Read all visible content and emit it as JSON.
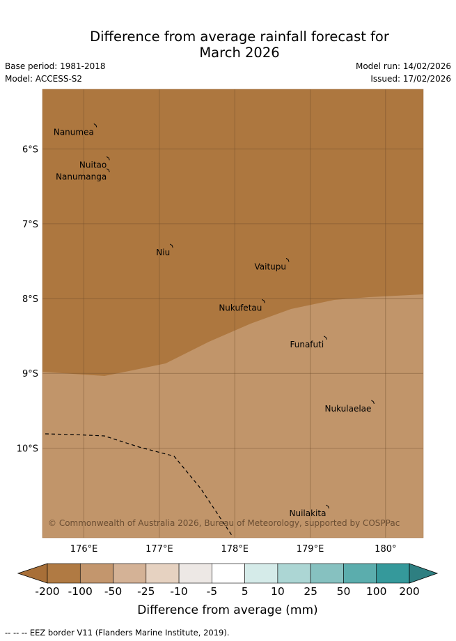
{
  "title": {
    "line1": "Difference from average rainfall forecast for",
    "line2": "March 2026"
  },
  "meta": {
    "base_period": "Base period: 1981-2018",
    "model": "Model: ACCESS-S2",
    "model_run": "Model run: 14/02/2026",
    "issued": "Issued: 17/02/2026"
  },
  "map": {
    "lon_range": [
      175.45,
      180.5
    ],
    "lat_range": [
      -11.2,
      -5.2
    ],
    "lon_ticks": [
      {
        "value": 176,
        "label": "176°E"
      },
      {
        "value": 177,
        "label": "177°E"
      },
      {
        "value": 178,
        "label": "178°E"
      },
      {
        "value": 179,
        "label": "179°E"
      },
      {
        "value": 180,
        "label": "180°"
      }
    ],
    "lat_ticks": [
      {
        "value": -6,
        "label": "6°S"
      },
      {
        "value": -7,
        "label": "7°S"
      },
      {
        "value": -8,
        "label": "8°S"
      },
      {
        "value": -9,
        "label": "9°S"
      },
      {
        "value": -10,
        "label": "10°S"
      }
    ],
    "colors": {
      "dark_zone": "#ad773f",
      "light_zone": "#c1956a",
      "grid": "#6b4a2a"
    },
    "islands": [
      {
        "name": "Nanumea",
        "lon": 176.15,
        "lat": -5.68
      },
      {
        "name": "Nuitao",
        "lon": 176.32,
        "lat": -6.12
      },
      {
        "name": "Nanumanga",
        "lon": 176.32,
        "lat": -6.28
      },
      {
        "name": "Niu",
        "lon": 177.16,
        "lat": -7.29
      },
      {
        "name": "Vaitupu",
        "lon": 178.7,
        "lat": -7.48
      },
      {
        "name": "Nukufetau",
        "lon": 178.38,
        "lat": -8.03
      },
      {
        "name": "Funafuti",
        "lon": 179.2,
        "lat": -8.52
      },
      {
        "name": "Nukulaelae",
        "lon": 179.83,
        "lat": -9.38
      },
      {
        "name": "Nuilakita",
        "lon": 179.23,
        "lat": -10.78
      }
    ],
    "copyright": "© Commonwealth of Australia 2026, Bureau of Meteorology, supported by COSPPac"
  },
  "colorbar": {
    "colors": [
      "#a86f38",
      "#b07a43",
      "#c3966d",
      "#d4b296",
      "#e6d2c1",
      "#ede8e5",
      "#ffffff",
      "#d5ebe9",
      "#acd6d4",
      "#86c1c0",
      "#5badad",
      "#35999b",
      "#2e7f81"
    ],
    "labels": [
      "-200",
      "-100",
      "-50",
      "-25",
      "-10",
      "-5",
      "5",
      "10",
      "25",
      "50",
      "100",
      "200"
    ],
    "title": "Difference from average (mm)"
  },
  "footer": "-- -- -- EEZ border V11 (Flanders Marine Institute, 2019)."
}
